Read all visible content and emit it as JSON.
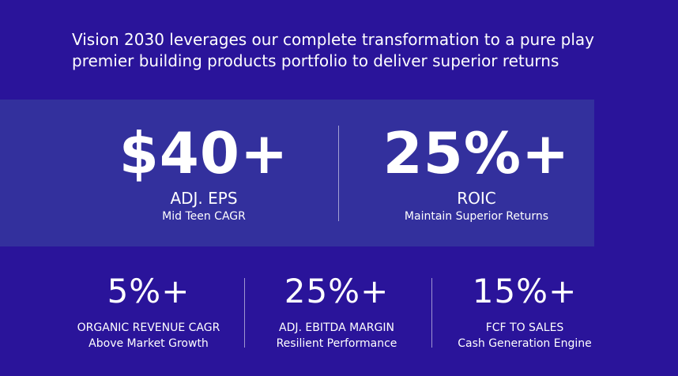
{
  "headline": {
    "line1": "Vision 2030 leverages our complete transformation to a pure play",
    "line2": "premier building products portfolio to deliver superior returns"
  },
  "top_metrics": [
    {
      "value": "$40+",
      "label": "ADJ. EPS",
      "sub": "Mid Teen CAGR"
    },
    {
      "value": "25%+",
      "label": "ROIC",
      "sub": "Maintain Superior Returns"
    }
  ],
  "bottom_metrics": [
    {
      "value": "5%+",
      "label": "ORGANIC REVENUE CAGR",
      "sub": "Above Market Growth"
    },
    {
      "value": "25%+",
      "label": "ADJ. EBITDA MARGIN",
      "sub": "Resilient Performance"
    },
    {
      "value": "15%+",
      "label": "FCF TO SALES",
      "sub": "Cash Generation Engine"
    }
  ],
  "colors": {
    "background": "#2a149a",
    "band": "#33309d",
    "text": "#ffffff"
  }
}
